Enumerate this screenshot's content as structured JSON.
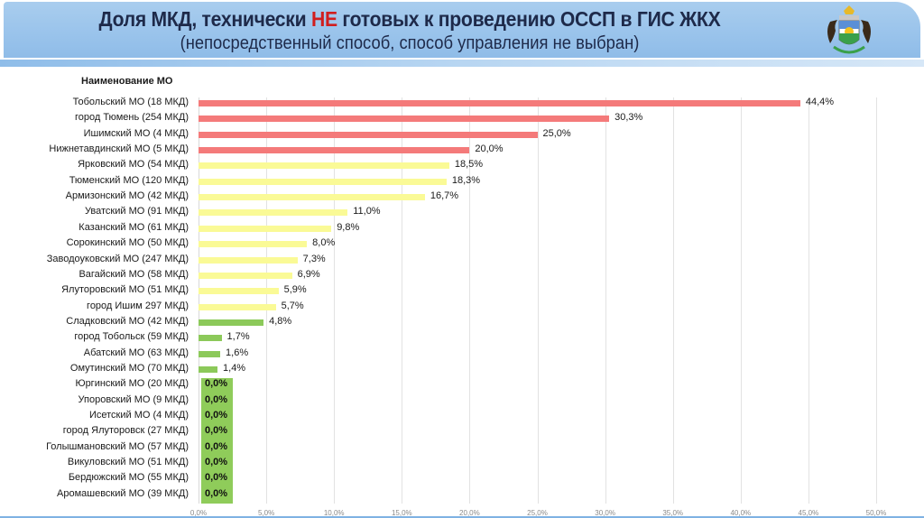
{
  "header": {
    "title_part1": "Доля МКД, технически ",
    "title_highlight": "НЕ",
    "title_part2": " готовых к проведению ОССП в ГИС ЖКХ",
    "subtitle": "(непосредственный способ, способ управления не выбран)",
    "emblem_icon": "tyumen-region-coat-of-arms-icon"
  },
  "colors": {
    "header_bg": "#99c3eb",
    "title_text": "#1e2a4a",
    "highlight": "#d11e1e",
    "bar_red": "#f47a7a",
    "bar_yellow": "#fafa96",
    "bar_green": "#8cc95a",
    "zero_box": "#8fcc5a"
  },
  "chart_data": {
    "type": "bar",
    "orientation": "horizontal",
    "title": "Доля МКД, технически НЕ готовых к проведению ОССП в ГИС ЖКХ",
    "subtitle": "(непосредственный способ, способ управления не выбран)",
    "ylabel": "Наименование МО",
    "xlabel": "",
    "xlim": [
      0,
      50
    ],
    "x_ticks": [
      "0,0%",
      "5,0%",
      "10,0%",
      "15,0%",
      "20,0%",
      "25,0%",
      "30,0%",
      "35,0%",
      "40,0%",
      "45,0%",
      "50,0%"
    ],
    "grid": true,
    "legend": null,
    "categories": [
      "Тобольский МО (18 МКД)",
      "город Тюмень (254 МКД)",
      "Ишимский МО (4 МКД)",
      "Нижнетавдинский МО (5 МКД)",
      "Ярковский МО (54 МКД)",
      "Тюменский МО (120 МКД)",
      "Армизонский МО (42 МКД)",
      "Уватский МО (91 МКД)",
      "Казанский МО (61 МКД)",
      "Сорокинский МО (50 МКД)",
      "Заводоуковский МО (247 МКД)",
      "Вагайский МО (58 МКД)",
      "Ялуторовский МО (51 МКД)",
      "город Ишим 297 МКД)",
      "Сладковский МО (42 МКД)",
      "город Тобольск (59 МКД)",
      "Абатский МО (63 МКД)",
      "Омутинский МО (70 МКД)",
      "Юргинский МО (20 МКД)",
      "Упоровский МО (9 МКД)",
      "Исетский МО (4 МКД)",
      "город Ялуторовск (27 МКД)",
      "Голышмановский МО (57 МКД)",
      "Викуловский МО (51 МКД)",
      "Бердюжский МО (55 МКД)",
      "Аромашевский МО (39 МКД)"
    ],
    "values": [
      44.4,
      30.3,
      25.0,
      20.0,
      18.5,
      18.3,
      16.7,
      11.0,
      9.8,
      8.0,
      7.3,
      6.9,
      5.9,
      5.7,
      4.8,
      1.7,
      1.6,
      1.4,
      0.0,
      0.0,
      0.0,
      0.0,
      0.0,
      0.0,
      0.0,
      0.0
    ],
    "value_labels": [
      "44,4%",
      "30,3%",
      "25,0%",
      "20,0%",
      "18,5%",
      "18,3%",
      "16,7%",
      "11,0%",
      "9,8%",
      "8,0%",
      "7,3%",
      "6,9%",
      "5,9%",
      "5,7%",
      "4,8%",
      "1,7%",
      "1,6%",
      "1,4%",
      "0,0%",
      "0,0%",
      "0,0%",
      "0,0%",
      "0,0%",
      "0,0%",
      "0,0%",
      "0,0%"
    ],
    "bar_color_groups": [
      "red",
      "red",
      "red",
      "red",
      "yellow",
      "yellow",
      "yellow",
      "yellow",
      "yellow",
      "yellow",
      "yellow",
      "yellow",
      "yellow",
      "yellow",
      "green",
      "green",
      "green",
      "green",
      "green",
      "green",
      "green",
      "green",
      "green",
      "green",
      "green",
      "green"
    ]
  }
}
